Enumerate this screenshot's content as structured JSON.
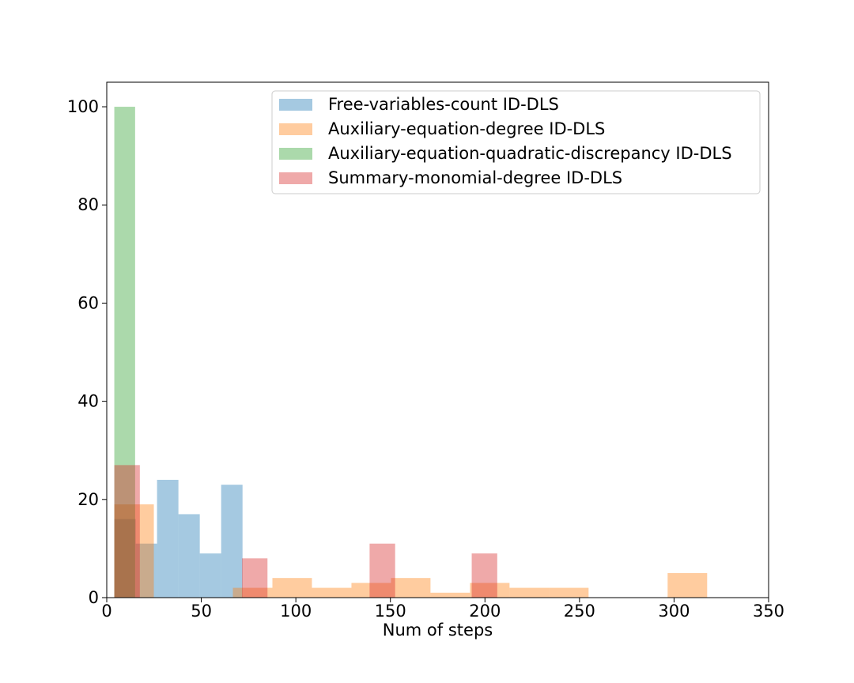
{
  "chart_data": {
    "type": "bar",
    "subtype": "histogram",
    "title": "",
    "xlabel": "Num of steps",
    "ylabel": "",
    "xlim": [
      0,
      350
    ],
    "ylim": [
      0,
      105
    ],
    "xticks": [
      0,
      50,
      100,
      150,
      200,
      250,
      300,
      350
    ],
    "yticks": [
      0,
      20,
      40,
      60,
      80,
      100
    ],
    "xtick_labels": [
      "0",
      "50",
      "100",
      "150",
      "200",
      "250",
      "300",
      "350"
    ],
    "ytick_labels": [
      "0",
      "20",
      "40",
      "60",
      "80",
      "100"
    ],
    "grid": false,
    "legend_position": "upper right",
    "series": [
      {
        "name": "Free-variables-count ID-DLS",
        "color": "#1f77b4",
        "bin_edges": [
          4,
          15.3,
          26.6,
          37.9,
          49.2,
          60.5,
          71.8
        ],
        "values": [
          16,
          11,
          24,
          17,
          9,
          23
        ]
      },
      {
        "name": "Auxiliary-equation-degree ID-DLS",
        "color": "#ff7f0e",
        "bin_edges": [
          4,
          24.9,
          45.8,
          66.7,
          87.6,
          108.5,
          129.4,
          150.3,
          171.2,
          192.1,
          213.0,
          233.9,
          254.8,
          275.7,
          296.6,
          317.5
        ],
        "values": [
          19,
          0,
          0,
          2,
          4,
          2,
          3,
          4,
          1,
          3,
          2,
          2,
          0,
          0,
          5
        ]
      },
      {
        "name": "Auxiliary-equation-quadratic-discrepancy ID-DLS",
        "color": "#2ca02c",
        "bin_edges": [
          4,
          15
        ],
        "values": [
          100
        ]
      },
      {
        "name": "Summary-monomial-degree ID-DLS",
        "color": "#d62728",
        "bin_edges": [
          4,
          17.5,
          31,
          44.5,
          58,
          71.5,
          85,
          98.5,
          112,
          125.5,
          139,
          152.5,
          166,
          179.5,
          193,
          206.5
        ],
        "values": [
          27,
          0,
          0,
          0,
          0,
          8,
          0,
          0,
          0,
          0,
          11,
          0,
          0,
          0,
          9
        ]
      }
    ]
  }
}
